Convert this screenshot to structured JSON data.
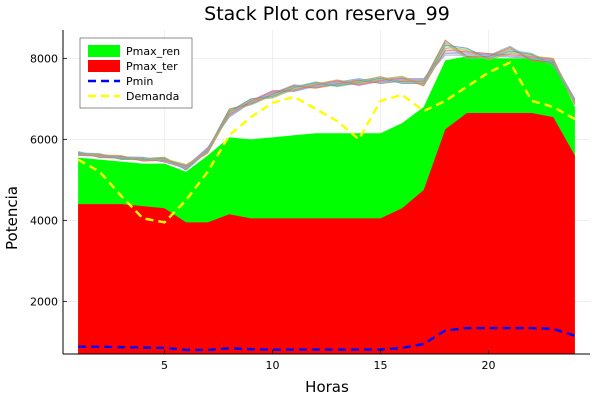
{
  "chart_data": {
    "type": "area",
    "title": "Stack Plot con reserva_99",
    "xlabel": "Horas",
    "ylabel": "Potencia",
    "xlim": [
      0.3,
      24.7
    ],
    "ylim": [
      700,
      8700
    ],
    "x_ticks": [
      5,
      10,
      15,
      20
    ],
    "y_ticks": [
      2000,
      4000,
      6000,
      8000
    ],
    "x_tick_labels": [
      "5",
      "10",
      "15",
      "20"
    ],
    "y_tick_labels": [
      "2000",
      "4000",
      "6000",
      "8000"
    ],
    "grid": true,
    "legend_position": "top-left",
    "x": [
      1,
      2,
      3,
      4,
      5,
      6,
      7,
      8,
      9,
      10,
      11,
      12,
      13,
      14,
      15,
      16,
      17,
      18,
      19,
      20,
      21,
      22,
      23,
      24
    ],
    "series": [
      {
        "name": "Pmax_ren",
        "kind": "fill",
        "color": "#00ff00",
        "values": [
          5550,
          5500,
          5450,
          5400,
          5400,
          5200,
          5600,
          6050,
          6000,
          6050,
          6100,
          6150,
          6150,
          6150,
          6150,
          6400,
          6800,
          7950,
          8050,
          8000,
          8000,
          8000,
          7950,
          6800
        ]
      },
      {
        "name": "Pmax_ter",
        "kind": "fill",
        "color": "#ff0000",
        "values": [
          4400,
          4400,
          4400,
          4350,
          4300,
          3950,
          3950,
          4150,
          4050,
          4050,
          4050,
          4050,
          4050,
          4050,
          4050,
          4300,
          4750,
          6250,
          6650,
          6650,
          6650,
          6650,
          6550,
          5600
        ]
      },
      {
        "name": "Pmin",
        "kind": "dashed-line",
        "color": "#0000ff",
        "values": [
          880,
          880,
          870,
          860,
          850,
          800,
          800,
          840,
          820,
          810,
          810,
          810,
          810,
          810,
          810,
          850,
          950,
          1280,
          1340,
          1340,
          1340,
          1340,
          1320,
          1150
        ]
      },
      {
        "name": "Demanda",
        "kind": "dashed-line",
        "color": "#ffff00",
        "values": [
          5500,
          5200,
          4600,
          4050,
          3950,
          4500,
          5200,
          6100,
          6550,
          6900,
          7050,
          6750,
          6450,
          6000,
          6950,
          7100,
          6700,
          6950,
          7300,
          7650,
          7900,
          6950,
          6800,
          6500
        ]
      }
    ],
    "scenario_band": {
      "upper": [
        5700,
        5650,
        5600,
        5560,
        5560,
        5380,
        5800,
        6750,
        7000,
        7200,
        7350,
        7420,
        7470,
        7500,
        7550,
        7560,
        7500,
        8450,
        8250,
        8120,
        8300,
        8120,
        8000,
        7000
      ],
      "lower": [
        5600,
        5550,
        5500,
        5460,
        5440,
        5240,
        5660,
        6550,
        6850,
        7020,
        7180,
        7260,
        7300,
        7330,
        7380,
        7380,
        7320,
        8080,
        7990,
        7960,
        8030,
        7940,
        7820,
        6850
      ],
      "colors": [
        "#6baed6",
        "#e6853b",
        "#8ccf6e",
        "#c27fc9",
        "#a0785a",
        "#4f8fbf",
        "#d36b6b",
        "#9aa9c8",
        "#7fbf9a",
        "#c9a74d"
      ]
    }
  }
}
